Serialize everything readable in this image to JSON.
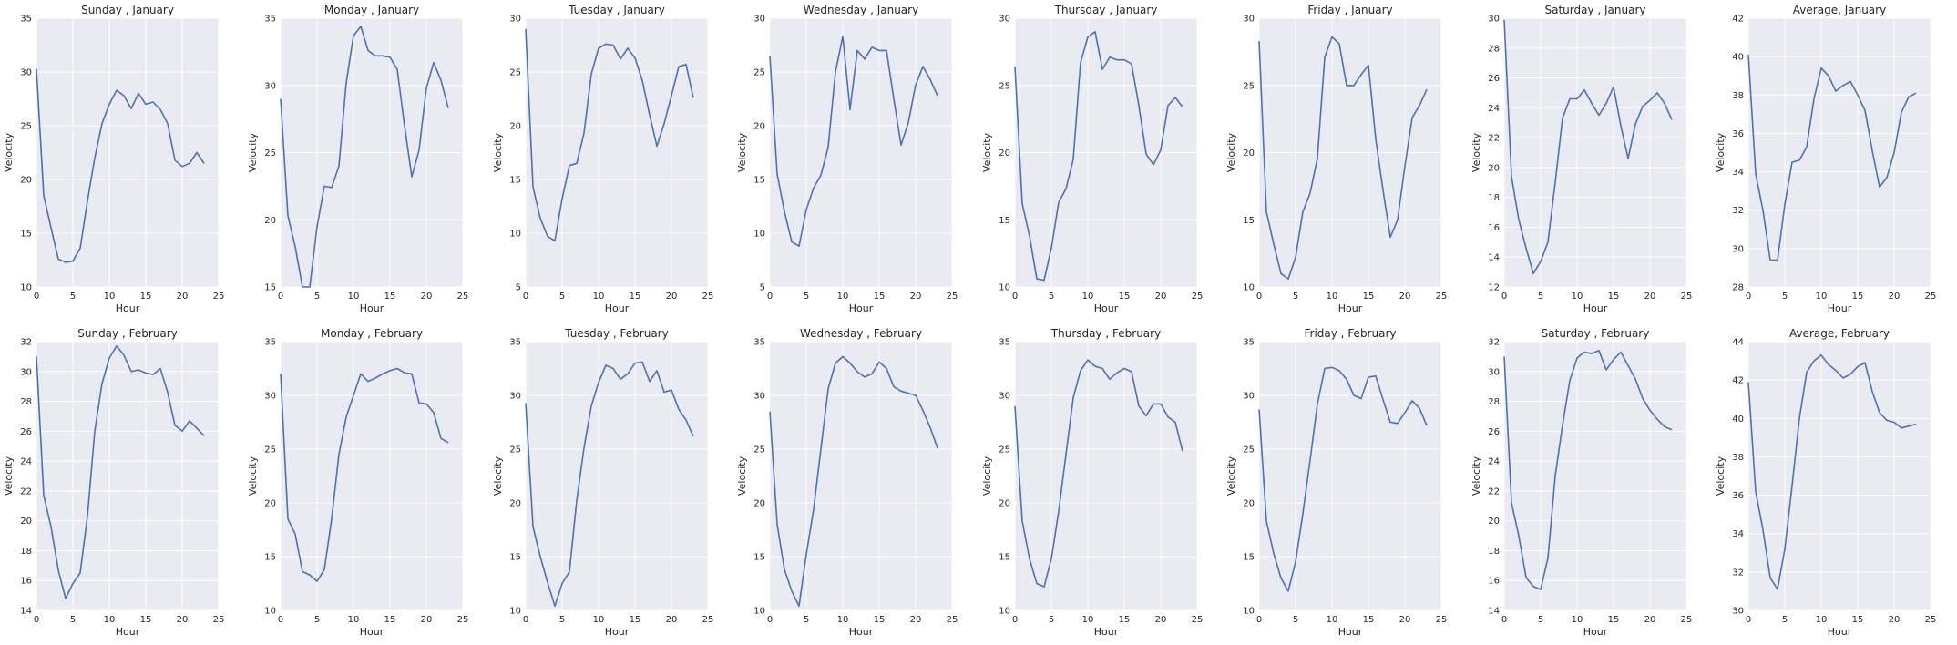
{
  "chart_data": [
    {
      "type": "line",
      "title": "Sunday , January",
      "xlabel": "Hour",
      "ylabel": "Velocity",
      "xlim": [
        0,
        25
      ],
      "ylim": [
        10,
        35
      ],
      "xticks": [
        0,
        5,
        10,
        15,
        20,
        25
      ],
      "yticks": [
        10,
        15,
        20,
        25,
        30,
        35
      ],
      "grid": true,
      "x": [
        0,
        1,
        2,
        3,
        4,
        5,
        6,
        7,
        8,
        9,
        10,
        11,
        12,
        13,
        14,
        15,
        16,
        17,
        18,
        19,
        20,
        21,
        22,
        23
      ],
      "y": [
        30.3,
        18.5,
        15.5,
        12.6,
        12.3,
        12.4,
        13.6,
        18.0,
        22.0,
        25.2,
        27.0,
        28.3,
        27.8,
        26.6,
        28.0,
        27.0,
        27.2,
        26.5,
        25.2,
        21.8,
        21.2,
        21.5,
        22.5,
        21.5
      ]
    },
    {
      "type": "line",
      "title": "Monday , January",
      "xlabel": "Hour",
      "ylabel": "Velocity",
      "xlim": [
        0,
        25
      ],
      "ylim": [
        15,
        35
      ],
      "xticks": [
        0,
        5,
        10,
        15,
        20,
        25
      ],
      "yticks": [
        15,
        20,
        25,
        30,
        35
      ],
      "grid": true,
      "x": [
        0,
        1,
        2,
        3,
        4,
        5,
        6,
        7,
        8,
        9,
        10,
        11,
        12,
        13,
        14,
        15,
        16,
        17,
        18,
        19,
        20,
        21,
        22,
        23
      ],
      "y": [
        29.0,
        20.3,
        18.0,
        15.0,
        15.0,
        19.5,
        22.5,
        22.4,
        24.0,
        30.2,
        33.7,
        34.4,
        32.6,
        32.2,
        32.2,
        32.1,
        31.2,
        27.0,
        23.2,
        25.2,
        29.8,
        31.7,
        30.4,
        28.3
      ]
    },
    {
      "type": "line",
      "title": "Tuesday , January",
      "xlabel": "Hour",
      "ylabel": "Velocity",
      "xlim": [
        0,
        25
      ],
      "ylim": [
        5,
        30
      ],
      "xticks": [
        0,
        5,
        10,
        15,
        20,
        25
      ],
      "yticks": [
        5,
        10,
        15,
        20,
        25,
        30
      ],
      "grid": true,
      "x": [
        0,
        1,
        2,
        3,
        4,
        5,
        6,
        7,
        8,
        9,
        10,
        11,
        12,
        13,
        14,
        15,
        16,
        17,
        18,
        19,
        20,
        21,
        22,
        23
      ],
      "y": [
        29.0,
        14.3,
        11.4,
        9.7,
        9.3,
        13.2,
        16.3,
        16.5,
        19.3,
        24.8,
        27.2,
        27.6,
        27.5,
        26.2,
        27.2,
        26.3,
        24.2,
        21.0,
        18.1,
        20.2,
        22.8,
        25.5,
        25.7,
        22.6
      ]
    },
    {
      "type": "line",
      "title": "Wednesday , January",
      "xlabel": "Hour",
      "ylabel": "Velocity",
      "xlim": [
        0,
        25
      ],
      "ylim": [
        5,
        30
      ],
      "xticks": [
        0,
        5,
        10,
        15,
        20,
        25
      ],
      "yticks": [
        5,
        10,
        15,
        20,
        25,
        30
      ],
      "grid": true,
      "x": [
        0,
        1,
        2,
        3,
        4,
        5,
        6,
        7,
        8,
        9,
        10,
        11,
        12,
        13,
        14,
        15,
        16,
        17,
        18,
        19,
        20,
        21,
        22,
        23
      ],
      "y": [
        26.5,
        15.5,
        12.0,
        9.2,
        8.8,
        12.2,
        14.2,
        15.4,
        18.0,
        25.0,
        28.3,
        21.5,
        27.0,
        26.2,
        27.3,
        27.0,
        27.0,
        22.5,
        18.2,
        20.3,
        23.8,
        25.5,
        24.3,
        22.8
      ]
    },
    {
      "type": "line",
      "title": "Thursday , January",
      "xlabel": "Hour",
      "ylabel": "Velocity",
      "xlim": [
        0,
        25
      ],
      "ylim": [
        10,
        30
      ],
      "xticks": [
        0,
        5,
        10,
        15,
        20,
        25
      ],
      "yticks": [
        10,
        15,
        20,
        25,
        30
      ],
      "grid": true,
      "x": [
        0,
        1,
        2,
        3,
        4,
        5,
        6,
        7,
        8,
        9,
        10,
        11,
        12,
        13,
        14,
        15,
        16,
        17,
        18,
        19,
        20,
        21,
        22,
        23
      ],
      "y": [
        26.4,
        16.2,
        13.8,
        10.6,
        10.5,
        12.9,
        16.3,
        17.3,
        19.5,
        26.7,
        28.6,
        29.0,
        26.2,
        27.1,
        26.9,
        26.9,
        26.6,
        23.5,
        19.9,
        19.1,
        20.2,
        23.5,
        24.1,
        23.4
      ]
    },
    {
      "type": "line",
      "title": "Friday , January",
      "xlabel": "Hour",
      "ylabel": "Velocity",
      "xlim": [
        0,
        25
      ],
      "ylim": [
        10,
        30
      ],
      "xticks": [
        0,
        5,
        10,
        15,
        20,
        25
      ],
      "yticks": [
        10,
        15,
        20,
        25,
        30
      ],
      "grid": true,
      "x": [
        0,
        1,
        2,
        3,
        4,
        5,
        6,
        7,
        8,
        9,
        10,
        11,
        12,
        13,
        14,
        15,
        16,
        17,
        18,
        19,
        20,
        21,
        22,
        23
      ],
      "y": [
        28.3,
        15.6,
        13.2,
        11.0,
        10.6,
        12.2,
        15.6,
        17.0,
        19.6,
        27.1,
        28.6,
        28.1,
        25.0,
        25.0,
        25.8,
        26.5,
        21.0,
        17.2,
        13.7,
        15.0,
        19.0,
        22.6,
        23.5,
        24.7
      ]
    },
    {
      "type": "line",
      "title": "Saturday , January",
      "xlabel": "Hour",
      "ylabel": "Velocity",
      "xlim": [
        0,
        25
      ],
      "ylim": [
        12,
        30
      ],
      "xticks": [
        0,
        5,
        10,
        15,
        20,
        25
      ],
      "yticks": [
        12,
        14,
        16,
        18,
        20,
        22,
        24,
        26,
        28,
        30
      ],
      "grid": true,
      "x": [
        0,
        1,
        2,
        3,
        4,
        5,
        6,
        7,
        8,
        9,
        10,
        11,
        12,
        13,
        14,
        15,
        16,
        17,
        18,
        19,
        20,
        21,
        22,
        23
      ],
      "y": [
        29.9,
        19.4,
        16.5,
        14.6,
        12.9,
        13.7,
        15.0,
        19.0,
        23.3,
        24.6,
        24.6,
        25.2,
        24.3,
        23.5,
        24.3,
        25.4,
        22.8,
        20.6,
        22.9,
        24.1,
        24.5,
        25.0,
        24.3,
        23.2
      ]
    },
    {
      "type": "line",
      "title": "Average, January",
      "xlabel": "Hour",
      "ylabel": "Velocity",
      "xlim": [
        0,
        25
      ],
      "ylim": [
        28,
        42
      ],
      "xticks": [
        0,
        5,
        10,
        15,
        20,
        25
      ],
      "yticks": [
        28,
        30,
        32,
        34,
        36,
        38,
        40,
        42
      ],
      "grid": true,
      "x": [
        0,
        1,
        2,
        3,
        4,
        5,
        6,
        7,
        8,
        9,
        10,
        11,
        12,
        13,
        14,
        15,
        16,
        17,
        18,
        19,
        20,
        21,
        22,
        23
      ],
      "y": [
        40.1,
        33.9,
        32.0,
        29.4,
        29.4,
        32.3,
        34.5,
        34.6,
        35.3,
        37.8,
        39.4,
        39.0,
        38.2,
        38.5,
        38.7,
        38.0,
        37.2,
        35.1,
        33.2,
        33.7,
        35.0,
        37.1,
        37.9,
        38.1
      ]
    },
    {
      "type": "line",
      "title": "Sunday , February",
      "xlabel": "Hour",
      "ylabel": "Velocity",
      "xlim": [
        0,
        25
      ],
      "ylim": [
        14,
        32
      ],
      "xticks": [
        0,
        5,
        10,
        15,
        20,
        25
      ],
      "yticks": [
        14,
        16,
        18,
        20,
        22,
        24,
        26,
        28,
        30,
        32
      ],
      "grid": true,
      "x": [
        0,
        1,
        2,
        3,
        4,
        5,
        6,
        7,
        8,
        9,
        10,
        11,
        12,
        13,
        14,
        15,
        16,
        17,
        18,
        19,
        20,
        21,
        22,
        23
      ],
      "y": [
        31.0,
        21.7,
        19.6,
        16.7,
        14.8,
        15.8,
        16.5,
        20.3,
        26.0,
        29.2,
        30.9,
        31.7,
        31.1,
        30.0,
        30.1,
        29.9,
        29.8,
        30.2,
        28.6,
        26.4,
        26.0,
        26.7,
        26.2,
        25.7
      ]
    },
    {
      "type": "line",
      "title": "Monday , February",
      "xlabel": "Hour",
      "ylabel": "Velocity",
      "xlim": [
        0,
        25
      ],
      "ylim": [
        10,
        35
      ],
      "xticks": [
        0,
        5,
        10,
        15,
        20,
        25
      ],
      "yticks": [
        10,
        15,
        20,
        25,
        30,
        35
      ],
      "grid": true,
      "x": [
        0,
        1,
        2,
        3,
        4,
        5,
        6,
        7,
        8,
        9,
        10,
        11,
        12,
        13,
        14,
        15,
        16,
        17,
        18,
        19,
        20,
        21,
        22,
        23
      ],
      "y": [
        32.0,
        18.5,
        17.1,
        13.6,
        13.3,
        12.7,
        13.8,
        18.5,
        24.5,
        28.0,
        30.0,
        32.0,
        31.3,
        31.6,
        32.0,
        32.3,
        32.5,
        32.1,
        32.0,
        29.3,
        29.2,
        28.4,
        26.0,
        25.6
      ]
    },
    {
      "type": "line",
      "title": "Tuesday , February",
      "xlabel": "Hour",
      "ylabel": "Velocity",
      "xlim": [
        0,
        25
      ],
      "ylim": [
        10,
        35
      ],
      "xticks": [
        0,
        5,
        10,
        15,
        20,
        25
      ],
      "yticks": [
        10,
        15,
        20,
        25,
        30,
        35
      ],
      "grid": true,
      "x": [
        0,
        1,
        2,
        3,
        4,
        5,
        6,
        7,
        8,
        9,
        10,
        11,
        12,
        13,
        14,
        15,
        16,
        17,
        18,
        19,
        20,
        21,
        22,
        23
      ],
      "y": [
        29.3,
        17.8,
        15.0,
        12.6,
        10.4,
        12.5,
        13.6,
        20.2,
        25.1,
        29.0,
        31.2,
        32.8,
        32.5,
        31.5,
        32.0,
        33.0,
        33.1,
        31.3,
        32.3,
        30.3,
        30.5,
        28.7,
        27.7,
        26.2
      ]
    },
    {
      "type": "line",
      "title": "Wednesday , February",
      "xlabel": "Hour",
      "ylabel": "Velocity",
      "xlim": [
        0,
        25
      ],
      "ylim": [
        10,
        35
      ],
      "xticks": [
        0,
        5,
        10,
        15,
        20,
        25
      ],
      "yticks": [
        10,
        15,
        20,
        25,
        30,
        35
      ],
      "grid": true,
      "x": [
        0,
        1,
        2,
        3,
        4,
        5,
        6,
        7,
        8,
        9,
        10,
        11,
        12,
        13,
        14,
        15,
        16,
        17,
        18,
        19,
        20,
        21,
        22,
        23
      ],
      "y": [
        28.5,
        18.0,
        13.8,
        11.8,
        10.4,
        15.2,
        19.4,
        25.0,
        30.6,
        33.0,
        33.6,
        33.0,
        32.2,
        31.7,
        32.0,
        33.1,
        32.5,
        30.8,
        30.4,
        30.2,
        30.0,
        28.6,
        27.0,
        25.1
      ]
    },
    {
      "type": "line",
      "title": "Thursday , February",
      "xlabel": "Hour",
      "ylabel": "Velocity",
      "xlim": [
        0,
        25
      ],
      "ylim": [
        10,
        35
      ],
      "xticks": [
        0,
        5,
        10,
        15,
        20,
        25
      ],
      "yticks": [
        10,
        15,
        20,
        25,
        30,
        35
      ],
      "grid": true,
      "x": [
        0,
        1,
        2,
        3,
        4,
        5,
        6,
        7,
        8,
        9,
        10,
        11,
        12,
        13,
        14,
        15,
        16,
        17,
        18,
        19,
        20,
        21,
        22,
        23
      ],
      "y": [
        29.0,
        18.3,
        14.8,
        12.5,
        12.2,
        14.8,
        19.2,
        24.5,
        29.8,
        32.3,
        33.3,
        32.7,
        32.5,
        31.5,
        32.1,
        32.5,
        32.2,
        29.0,
        28.1,
        29.2,
        29.2,
        28.0,
        27.5,
        24.8
      ]
    },
    {
      "type": "line",
      "title": "Friday , February",
      "xlabel": "Hour",
      "ylabel": "Velocity",
      "xlim": [
        0,
        25
      ],
      "ylim": [
        10,
        35
      ],
      "xticks": [
        0,
        5,
        10,
        15,
        20,
        25
      ],
      "yticks": [
        10,
        15,
        20,
        25,
        30,
        35
      ],
      "grid": true,
      "x": [
        0,
        1,
        2,
        3,
        4,
        5,
        6,
        7,
        8,
        9,
        10,
        11,
        12,
        13,
        14,
        15,
        16,
        17,
        18,
        19,
        20,
        21,
        22,
        23
      ],
      "y": [
        28.7,
        18.3,
        15.3,
        13.0,
        11.8,
        14.5,
        19.0,
        24.0,
        29.2,
        32.5,
        32.6,
        32.3,
        31.5,
        30.0,
        29.7,
        31.7,
        31.8,
        29.6,
        27.5,
        27.4,
        28.4,
        29.5,
        28.8,
        27.2
      ]
    },
    {
      "type": "line",
      "title": "Saturday , February",
      "xlabel": "Hour",
      "ylabel": "Velocity",
      "xlim": [
        0,
        25
      ],
      "ylim": [
        14,
        32
      ],
      "xticks": [
        0,
        5,
        10,
        15,
        20,
        25
      ],
      "yticks": [
        14,
        16,
        18,
        20,
        22,
        24,
        26,
        28,
        30,
        32
      ],
      "grid": true,
      "x": [
        0,
        1,
        2,
        3,
        4,
        5,
        6,
        7,
        8,
        9,
        10,
        11,
        12,
        13,
        14,
        15,
        16,
        17,
        18,
        19,
        20,
        21,
        22,
        23
      ],
      "y": [
        31.0,
        21.2,
        19.0,
        16.2,
        15.6,
        15.4,
        17.5,
        23.0,
        26.4,
        29.4,
        30.9,
        31.3,
        31.2,
        31.4,
        30.1,
        30.8,
        31.3,
        30.4,
        29.5,
        28.2,
        27.4,
        26.8,
        26.3,
        26.1
      ]
    },
    {
      "type": "line",
      "title": "Average, February",
      "xlabel": "Hour",
      "ylabel": "Velocity",
      "xlim": [
        0,
        25
      ],
      "ylim": [
        30,
        44
      ],
      "xticks": [
        0,
        5,
        10,
        15,
        20,
        25
      ],
      "yticks": [
        30,
        32,
        34,
        36,
        38,
        40,
        42,
        44
      ],
      "grid": true,
      "x": [
        0,
        1,
        2,
        3,
        4,
        5,
        6,
        7,
        8,
        9,
        10,
        11,
        12,
        13,
        14,
        15,
        16,
        17,
        18,
        19,
        20,
        21,
        22,
        23
      ],
      "y": [
        41.9,
        36.2,
        34.2,
        31.7,
        31.1,
        33.2,
        36.5,
        40.0,
        42.4,
        43.0,
        43.3,
        42.8,
        42.5,
        42.1,
        42.3,
        42.7,
        42.9,
        41.4,
        40.3,
        39.9,
        39.8,
        39.5,
        39.6,
        39.7
      ]
    }
  ]
}
